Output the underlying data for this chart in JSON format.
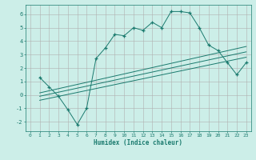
{
  "xlabel": "Humidex (Indice chaleur)",
  "background_color": "#cceee8",
  "grid_color": "#b0b0b0",
  "line_color": "#1a7a6e",
  "xlim": [
    -0.5,
    23.5
  ],
  "ylim": [
    -2.7,
    6.7
  ],
  "xticks": [
    0,
    1,
    2,
    3,
    4,
    5,
    6,
    7,
    8,
    9,
    10,
    11,
    12,
    13,
    14,
    15,
    16,
    17,
    18,
    19,
    20,
    21,
    22,
    23
  ],
  "yticks": [
    -2,
    -1,
    0,
    1,
    2,
    3,
    4,
    5,
    6
  ],
  "main_x": [
    1,
    2,
    3,
    4,
    5,
    6,
    7,
    8,
    9,
    10,
    11,
    12,
    13,
    14,
    15,
    16,
    17,
    18,
    19,
    20,
    21,
    22,
    23
  ],
  "main_y": [
    1.3,
    0.6,
    -0.1,
    -1.1,
    -2.2,
    -1.0,
    2.7,
    3.5,
    4.5,
    4.4,
    5.0,
    4.8,
    5.4,
    5.0,
    6.2,
    6.2,
    6.1,
    5.0,
    3.7,
    3.3,
    2.4,
    1.5,
    2.4
  ],
  "line1_x": [
    1,
    23
  ],
  "line1_y": [
    0.15,
    3.6
  ],
  "line2_x": [
    1,
    23
  ],
  "line2_y": [
    -0.1,
    3.2
  ],
  "line3_x": [
    1,
    23
  ],
  "line3_y": [
    -0.4,
    2.8
  ]
}
